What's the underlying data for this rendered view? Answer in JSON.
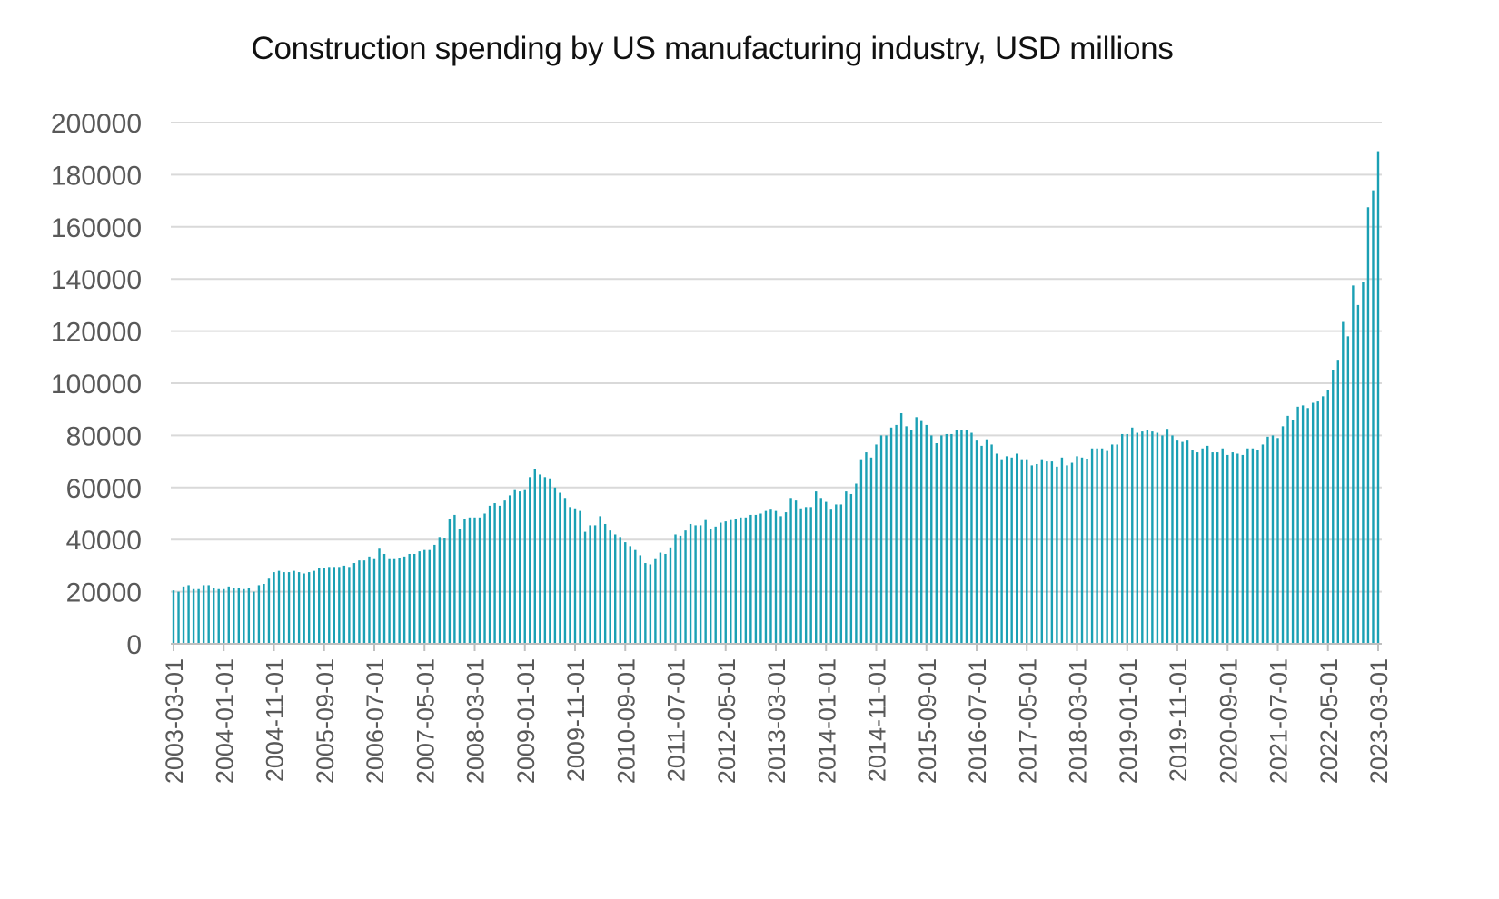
{
  "chart_data": {
    "type": "bar",
    "title": "Construction spending by US manufacturing industry, USD millions",
    "xlabel": "",
    "ylabel": "",
    "x_start": "2003-03-01",
    "x_end": "2023-03-01",
    "frequency": "monthly",
    "ylim": [
      0,
      200000
    ],
    "yticks": [
      "0",
      "20000",
      "40000",
      "60000",
      "80000",
      "100000",
      "120000",
      "140000",
      "160000",
      "180000",
      "200000"
    ],
    "xtick_labels": [
      "2003-03-01",
      "2004-01-01",
      "2004-11-01",
      "2005-09-01",
      "2006-07-01",
      "2007-05-01",
      "2008-03-01",
      "2009-01-01",
      "2009-11-01",
      "2010-09-01",
      "2011-07-01",
      "2012-05-01",
      "2013-03-01",
      "2014-01-01",
      "2014-11-01",
      "2015-09-01",
      "2016-07-01",
      "2017-05-01",
      "2018-03-01",
      "2019-01-01",
      "2019-11-01",
      "2020-09-01",
      "2021-07-01",
      "2022-05-01",
      "2023-03-01"
    ],
    "grid": true,
    "legend": "none",
    "bar_color": "#1AA0B4",
    "values": [
      20500,
      20000,
      22000,
      22500,
      21000,
      21000,
      22500,
      22500,
      21500,
      21000,
      21000,
      22000,
      21500,
      21500,
      21000,
      21500,
      20000,
      22500,
      23000,
      25000,
      27500,
      28000,
      27500,
      27500,
      28000,
      27500,
      27000,
      27500,
      28000,
      29000,
      29000,
      29500,
      29500,
      29500,
      30000,
      29500,
      31000,
      32000,
      32000,
      33500,
      32500,
      36500,
      34500,
      32500,
      32500,
      33000,
      33500,
      34500,
      34500,
      35500,
      36000,
      36000,
      38000,
      41000,
      40500,
      48000,
      49500,
      44000,
      48000,
      48500,
      48500,
      48500,
      50000,
      53000,
      54000,
      53000,
      55000,
      57000,
      59000,
      58500,
      59000,
      64000,
      67000,
      65000,
      64000,
      63500,
      60000,
      58000,
      56000,
      52500,
      52000,
      51000,
      43000,
      45500,
      45500,
      49000,
      46000,
      43500,
      42000,
      41000,
      39000,
      37500,
      36000,
      34000,
      31000,
      30500,
      32500,
      35000,
      34500,
      37000,
      42000,
      41500,
      43500,
      46000,
      45500,
      45500,
      47500,
      44000,
      45000,
      46500,
      47000,
      47500,
      48000,
      48500,
      48500,
      49500,
      49500,
      50000,
      51000,
      51500,
      51000,
      49000,
      50500,
      56000,
      55000,
      52000,
      52500,
      52500,
      58500,
      56000,
      54500,
      51500,
      53500,
      53500,
      58500,
      57500,
      61500,
      70500,
      73500,
      71500,
      76500,
      80000,
      80000,
      83000,
      84000,
      88500,
      83500,
      82000,
      87000,
      85500,
      84000,
      80000,
      77000,
      80000,
      80500,
      80500,
      82000,
      82000,
      82000,
      81000,
      78000,
      76000,
      78500,
      76500,
      73000,
      70500,
      72000,
      71500,
      73000,
      70500,
      70500,
      68500,
      69000,
      70500,
      70000,
      70000,
      68000,
      71500,
      68500,
      69500,
      72000,
      71500,
      71000,
      75000,
      75000,
      75000,
      74000,
      76500,
      76500,
      80500,
      80500,
      83000,
      81000,
      81500,
      82000,
      81500,
      81000,
      80000,
      82500,
      80000,
      78000,
      77500,
      78000,
      74500,
      73500,
      75000,
      76000,
      73500,
      73500,
      75000,
      72500,
      73500,
      73000,
      72500,
      75000,
      75000,
      74500,
      76500,
      79500,
      80000,
      79000,
      83500,
      87500,
      86000,
      91000,
      91500,
      90500,
      92500,
      93000,
      95000,
      97500,
      105000,
      109000,
      123500,
      118000,
      137500,
      130000,
      139000,
      167500,
      174000,
      189000
    ]
  }
}
